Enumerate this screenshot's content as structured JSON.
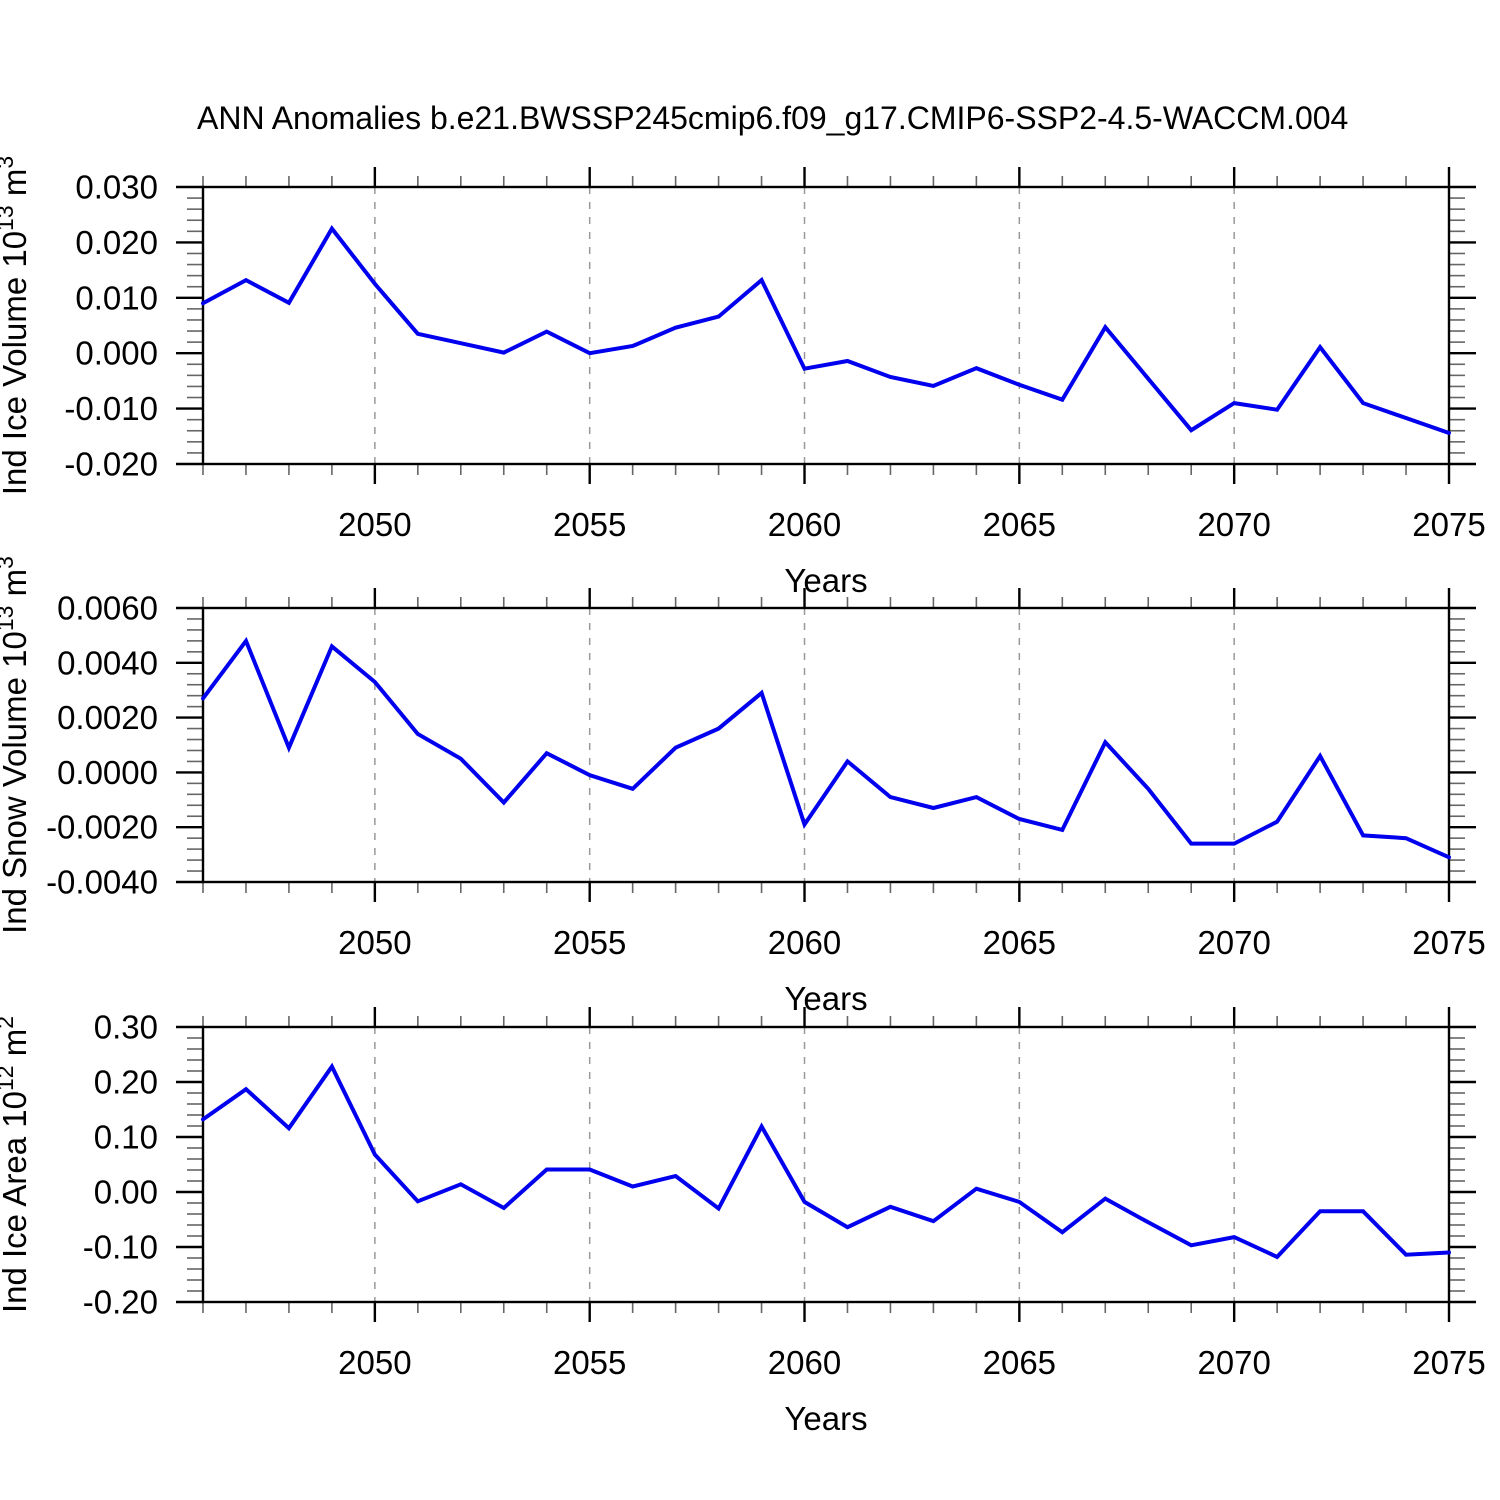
{
  "title": "ANN Anomalies b.e21.BWSSP245cmip6.f09_g17.CMIP6-SSP2-4.5-WACCM.004",
  "colors": {
    "line": "#0000ee",
    "axis": "#000000",
    "minor_tick": "#666666",
    "grid": "#999999",
    "background": "#ffffff"
  },
  "x_axis": {
    "label": "Years",
    "start": 2046,
    "end": 2075,
    "major_ticks": [
      2050,
      2055,
      2060,
      2065,
      2070,
      2075
    ],
    "tick_labels": [
      "2050",
      "2055",
      "2060",
      "2065",
      "2070",
      "2075"
    ],
    "gridline_years": [
      2050,
      2055,
      2060,
      2065,
      2070
    ]
  },
  "years": [
    2046,
    2047,
    2048,
    2049,
    2050,
    2051,
    2052,
    2053,
    2054,
    2055,
    2056,
    2057,
    2058,
    2059,
    2060,
    2061,
    2062,
    2063,
    2064,
    2065,
    2066,
    2067,
    2068,
    2069,
    2070,
    2071,
    2072,
    2073,
    2074,
    2075
  ],
  "chart_data": [
    {
      "type": "line",
      "name": "ice-volume",
      "title": "ANN Anomalies b.e21.BWSSP245cmip6.f09_g17.CMIP6-SSP2-4.5-WACCM.004",
      "xlabel": "Years",
      "ylabel": "Ind Ice Volume 10^13 m^3",
      "ylabel_parts": [
        [
          "Ind Ice Volume 10",
          false
        ],
        [
          "13",
          true
        ],
        [
          " m",
          false
        ],
        [
          "3",
          true
        ]
      ],
      "ylim": [
        -0.02,
        0.03
      ],
      "y_ticks": [
        0.03,
        0.02,
        0.01,
        0.0,
        -0.01,
        -0.02
      ],
      "y_tick_labels": [
        "0.030",
        "0.020",
        "0.010",
        "0.000",
        "-0.010",
        "-0.020"
      ],
      "y_minor_step": 0.002,
      "x": [
        2046,
        2047,
        2048,
        2049,
        2050,
        2051,
        2052,
        2053,
        2054,
        2055,
        2056,
        2057,
        2058,
        2059,
        2060,
        2061,
        2062,
        2063,
        2064,
        2065,
        2066,
        2067,
        2068,
        2069,
        2070,
        2071,
        2072,
        2073,
        2074,
        2075
      ],
      "values": [
        0.009,
        0.0132,
        0.0091,
        0.0225,
        0.0125,
        0.0035,
        0.0018,
        0.0001,
        0.0039,
        0.0,
        0.0013,
        0.0046,
        0.0066,
        0.0132,
        -0.0028,
        -0.0014,
        -0.0043,
        -0.0059,
        -0.0027,
        -0.0057,
        -0.0084,
        0.0047,
        -0.0046,
        -0.0139,
        -0.009,
        -0.0102,
        0.0011,
        -0.009,
        -0.0117,
        -0.0144
      ],
      "grid": "vertical-dashed",
      "legend": "none"
    },
    {
      "type": "line",
      "name": "snow-volume",
      "title": "",
      "xlabel": "Years",
      "ylabel": "Ind Snow Volume 10^13 m^3",
      "ylabel_parts": [
        [
          "Ind Snow Volume 10",
          false
        ],
        [
          "13",
          true
        ],
        [
          " m",
          false
        ],
        [
          "3",
          true
        ]
      ],
      "ylim": [
        -0.004,
        0.006
      ],
      "y_ticks": [
        0.006,
        0.004,
        0.002,
        0.0,
        -0.002,
        -0.004
      ],
      "y_tick_labels": [
        "0.0060",
        "0.0040",
        "0.0020",
        "0.0000",
        "-0.0020",
        "-0.0040"
      ],
      "y_minor_step": 0.0004,
      "x": [
        2046,
        2047,
        2048,
        2049,
        2050,
        2051,
        2052,
        2053,
        2054,
        2055,
        2056,
        2057,
        2058,
        2059,
        2060,
        2061,
        2062,
        2063,
        2064,
        2065,
        2066,
        2067,
        2068,
        2069,
        2070,
        2071,
        2072,
        2073,
        2074,
        2075
      ],
      "values": [
        0.0027,
        0.0048,
        0.0009,
        0.0046,
        0.0033,
        0.0014,
        0.0005,
        -0.0011,
        0.0007,
        -0.0001,
        -0.0006,
        0.0009,
        0.0016,
        0.0029,
        -0.0019,
        0.0004,
        -0.0009,
        -0.0013,
        -0.0009,
        -0.0017,
        -0.0021,
        0.0011,
        -0.0006,
        -0.0026,
        -0.0026,
        -0.0018,
        0.0006,
        -0.0023,
        -0.0024,
        -0.0031
      ],
      "grid": "vertical-dashed",
      "legend": "none"
    },
    {
      "type": "line",
      "name": "ice-area",
      "title": "",
      "xlabel": "Years",
      "ylabel": "Ind Ice Area 10^12 m^2",
      "ylabel_parts": [
        [
          "Ind Ice Area 10",
          false
        ],
        [
          "12",
          true
        ],
        [
          " m",
          false
        ],
        [
          "2",
          true
        ]
      ],
      "ylim": [
        -0.2,
        0.3
      ],
      "y_ticks": [
        0.3,
        0.2,
        0.1,
        0.0,
        -0.1,
        -0.2
      ],
      "y_tick_labels": [
        "0.30",
        "0.20",
        "0.10",
        "0.00",
        "-0.10",
        "-0.20"
      ],
      "y_minor_step": 0.02,
      "x": [
        2046,
        2047,
        2048,
        2049,
        2050,
        2051,
        2052,
        2053,
        2054,
        2055,
        2056,
        2057,
        2058,
        2059,
        2060,
        2061,
        2062,
        2063,
        2064,
        2065,
        2066,
        2067,
        2068,
        2069,
        2070,
        2071,
        2072,
        2073,
        2074,
        2075
      ],
      "values": [
        0.132,
        0.187,
        0.116,
        0.228,
        0.068,
        -0.017,
        0.014,
        -0.029,
        0.041,
        0.041,
        0.01,
        0.029,
        -0.03,
        0.119,
        -0.018,
        -0.064,
        -0.027,
        -0.053,
        0.006,
        -0.018,
        -0.073,
        -0.012,
        -0.055,
        -0.097,
        -0.082,
        -0.118,
        -0.035,
        -0.035,
        -0.114,
        -0.11
      ],
      "grid": "vertical-dashed",
      "legend": "none"
    }
  ]
}
